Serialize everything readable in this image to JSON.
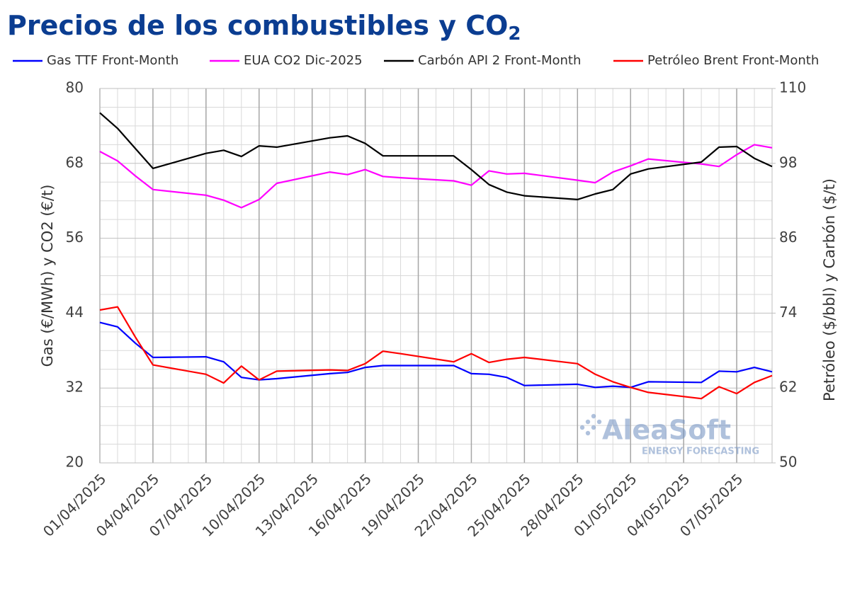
{
  "chart_data": {
    "type": "line",
    "title": "Precios de los combustibles y CO",
    "title_subscript": "2",
    "ylabel": "Gas (€/MWh) y CO2 (€/t)",
    "y2label": "Petróleo ($/bbl) y Carbón ($/t)",
    "watermark": "AleaSoft",
    "watermark_sub": "ENERGY FORECASTING",
    "x": [
      "01/04/2025",
      "02/04/2025",
      "03/04/2025",
      "04/04/2025",
      "07/04/2025",
      "08/04/2025",
      "09/04/2025",
      "10/04/2025",
      "11/04/2025",
      "14/04/2025",
      "15/04/2025",
      "16/04/2025",
      "17/04/2025",
      "18/04/2025",
      "21/04/2025",
      "22/04/2025",
      "23/04/2025",
      "24/04/2025",
      "25/04/2025",
      "28/04/2025",
      "29/04/2025",
      "30/04/2025",
      "01/05/2025",
      "02/05/2025",
      "05/05/2025",
      "06/05/2025",
      "07/05/2025",
      "08/05/2025",
      "09/05/2025"
    ],
    "xlim": [
      "01/04/2025",
      "09/05/2025"
    ],
    "xticks": [
      "01/04/2025",
      "04/04/2025",
      "07/04/2025",
      "10/04/2025",
      "13/04/2025",
      "16/04/2025",
      "19/04/2025",
      "22/04/2025",
      "25/04/2025",
      "28/04/2025",
      "01/05/2025",
      "04/05/2025",
      "07/05/2025"
    ],
    "ylim": [
      20,
      80
    ],
    "yticks": [
      20,
      32,
      44,
      56,
      68,
      80
    ],
    "y2lim": [
      50,
      110
    ],
    "y2ticks": [
      50,
      62,
      74,
      86,
      98,
      110
    ],
    "grid": true,
    "series": [
      {
        "name": "Gas TTF Front-Month",
        "color": "#0000ff",
        "axis": "y",
        "values": [
          42.5,
          41.8,
          39.2,
          36.9,
          37.0,
          36.2,
          33.7,
          33.3,
          33.5,
          34.3,
          34.5,
          35.3,
          35.6,
          35.6,
          35.6,
          34.3,
          34.2,
          33.7,
          32.4,
          32.6,
          32.1,
          32.3,
          32.1,
          33.0,
          32.9,
          34.7,
          34.6,
          35.3,
          34.6
        ]
      },
      {
        "name": "EUA CO2 Dic-2025",
        "color": "#ff00ff",
        "axis": "y",
        "values": [
          69.9,
          68.4,
          66.0,
          63.8,
          62.9,
          62.1,
          60.9,
          62.2,
          64.8,
          66.6,
          66.2,
          67.0,
          65.9,
          65.7,
          65.2,
          64.5,
          66.8,
          66.3,
          66.4,
          65.3,
          64.9,
          66.6,
          67.6,
          68.7,
          67.9,
          67.5,
          69.4,
          71.0,
          70.5
        ]
      },
      {
        "name": "Carbón API 2 Front-Month",
        "color": "#000000",
        "axis": "y2",
        "values": [
          106.1,
          103.6,
          100.4,
          97.2,
          99.6,
          100.1,
          99.1,
          100.8,
          100.6,
          102.1,
          102.4,
          101.2,
          99.2,
          99.2,
          99.2,
          97.0,
          94.6,
          93.4,
          92.8,
          92.2,
          93.1,
          93.8,
          96.3,
          97.1,
          98.2,
          100.6,
          100.7,
          98.8,
          97.5
        ]
      },
      {
        "name": "Petróleo Brent Front-Month",
        "color": "#ff0000",
        "axis": "y2",
        "values": [
          74.5,
          75.0,
          70.2,
          65.7,
          64.2,
          62.8,
          65.5,
          63.3,
          64.7,
          64.9,
          64.8,
          65.9,
          67.9,
          67.5,
          66.2,
          67.5,
          66.1,
          66.6,
          66.9,
          65.9,
          64.2,
          63.0,
          62.1,
          61.3,
          60.3,
          62.2,
          61.1,
          62.9,
          64.0
        ]
      }
    ]
  }
}
